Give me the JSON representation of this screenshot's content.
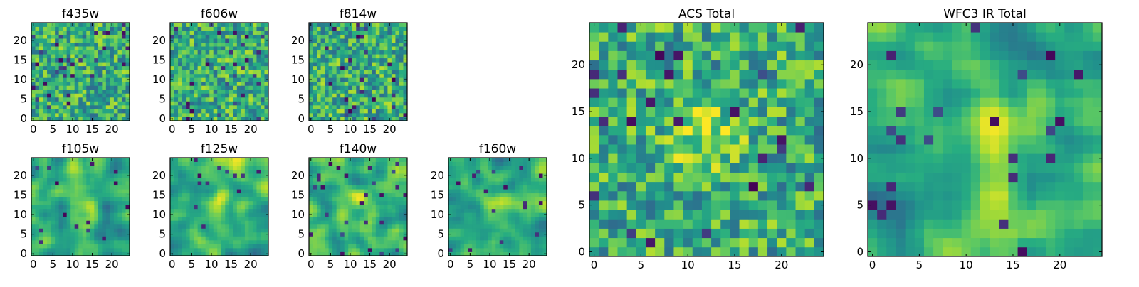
{
  "chart_data": [
    {
      "type": "heatmap",
      "title": "f435w",
      "x_ticks": [
        0,
        5,
        10,
        15,
        20
      ],
      "y_ticks": [
        0,
        5,
        10,
        15,
        20
      ],
      "xlim": [
        -0.5,
        24.5
      ],
      "ylim": [
        -0.5,
        24.5
      ],
      "grid_size": [
        25,
        25
      ],
      "colormap": "viridis",
      "texture": "speckled",
      "blobs": []
    },
    {
      "type": "heatmap",
      "title": "f606w",
      "x_ticks": [
        0,
        5,
        10,
        15,
        20
      ],
      "y_ticks": [
        0,
        5,
        10,
        15,
        20
      ],
      "xlim": [
        -0.5,
        24.5
      ],
      "ylim": [
        -0.5,
        24.5
      ],
      "grid_size": [
        25,
        25
      ],
      "colormap": "viridis",
      "texture": "speckled",
      "blobs": []
    },
    {
      "type": "heatmap",
      "title": "f814w",
      "x_ticks": [
        0,
        5,
        10,
        15,
        20
      ],
      "y_ticks": [
        0,
        5,
        10,
        15,
        20
      ],
      "xlim": [
        -0.5,
        24.5
      ],
      "ylim": [
        -0.5,
        24.5
      ],
      "grid_size": [
        25,
        25
      ],
      "colormap": "viridis",
      "texture": "speckled",
      "blobs": []
    },
    {
      "type": "heatmap",
      "title": "f105w",
      "x_ticks": [
        0,
        5,
        10,
        15,
        20
      ],
      "y_ticks": [
        0,
        5,
        10,
        15,
        20
      ],
      "xlim": [
        -0.5,
        24.5
      ],
      "ylim": [
        -0.5,
        24.5
      ],
      "grid_size": [
        25,
        25
      ],
      "colormap": "viridis",
      "texture": "smooth",
      "blobs": [
        [
          12,
          12
        ]
      ]
    },
    {
      "type": "heatmap",
      "title": "f125w",
      "x_ticks": [
        0,
        5,
        10,
        15,
        20
      ],
      "y_ticks": [
        0,
        5,
        10,
        15,
        20
      ],
      "xlim": [
        -0.5,
        24.5
      ],
      "ylim": [
        -0.5,
        24.5
      ],
      "grid_size": [
        25,
        25
      ],
      "colormap": "viridis",
      "texture": "smooth",
      "blobs": [
        [
          17,
          21
        ],
        [
          12,
          12
        ]
      ]
    },
    {
      "type": "heatmap",
      "title": "f140w",
      "x_ticks": [
        0,
        5,
        10,
        15,
        20
      ],
      "y_ticks": [
        0,
        5,
        10,
        15,
        20
      ],
      "xlim": [
        -0.5,
        24.5
      ],
      "ylim": [
        -0.5,
        24.5
      ],
      "grid_size": [
        25,
        25
      ],
      "colormap": "viridis",
      "texture": "smooth",
      "blobs": [
        [
          12,
          12
        ]
      ]
    },
    {
      "type": "heatmap",
      "title": "f160w",
      "x_ticks": [
        0,
        5,
        10,
        15,
        20
      ],
      "y_ticks": [
        0,
        5,
        10,
        15,
        20
      ],
      "xlim": [
        -0.5,
        24.5
      ],
      "ylim": [
        -0.5,
        24.5
      ],
      "grid_size": [
        25,
        25
      ],
      "colormap": "viridis",
      "texture": "smooth",
      "blobs": [
        [
          12,
          11
        ]
      ]
    },
    {
      "type": "heatmap",
      "title": "ACS Total",
      "x_ticks": [
        0,
        5,
        10,
        15,
        20
      ],
      "y_ticks": [
        0,
        5,
        10,
        15,
        20
      ],
      "xlim": [
        -0.5,
        24.5
      ],
      "ylim": [
        -0.5,
        24.5
      ],
      "grid_size": [
        25,
        25
      ],
      "colormap": "viridis",
      "texture": "speckled",
      "blobs": [
        [
          12,
          12
        ]
      ]
    },
    {
      "type": "heatmap",
      "title": "WFC3 IR Total",
      "x_ticks": [
        0,
        5,
        10,
        15,
        20
      ],
      "y_ticks": [
        0,
        5,
        10,
        15,
        20
      ],
      "xlim": [
        -0.5,
        24.5
      ],
      "ylim": [
        -0.5,
        24.5
      ],
      "grid_size": [
        25,
        25
      ],
      "colormap": "viridis",
      "texture": "smooth",
      "blobs": [
        [
          12,
          12
        ]
      ]
    }
  ]
}
